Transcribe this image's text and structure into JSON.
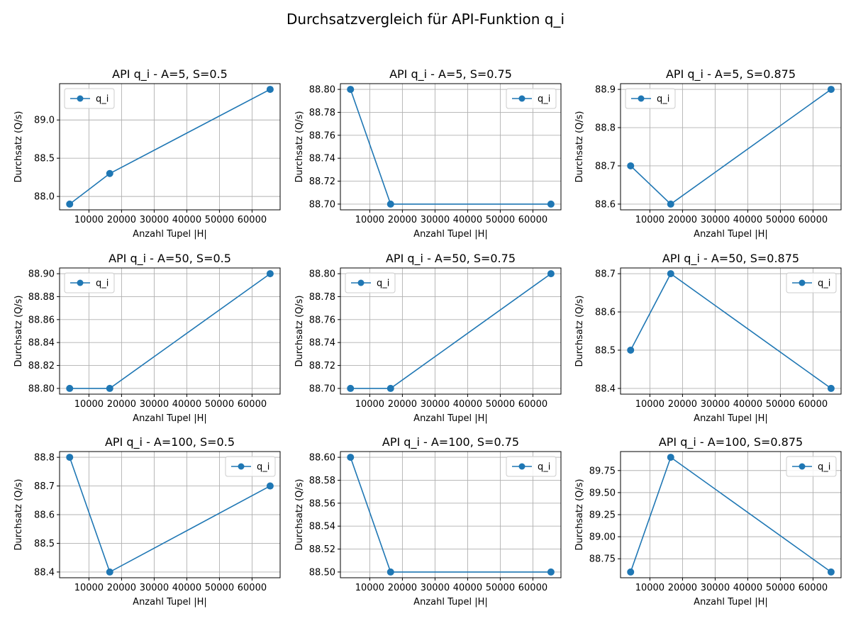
{
  "figure": {
    "title": "Durchsatzvergleich für API-Funktion q_i"
  },
  "colors": {
    "series": "#1f77b4",
    "grid": "#b0b0b0"
  },
  "chart_data": [
    {
      "type": "line",
      "title": "API q_i - A=5, S=0.5",
      "xlabel": "Anzahl Tupel |H|",
      "ylabel": "Durchsatz (Q/s)",
      "x": [
        4096,
        16384,
        65536
      ],
      "series": [
        {
          "name": "q_i",
          "values": [
            87.9,
            88.3,
            89.4
          ]
        }
      ],
      "xlim": [
        1000,
        68600
      ],
      "ylim": [
        87.825,
        89.475
      ],
      "xticks": [
        10000,
        20000,
        30000,
        40000,
        50000,
        60000
      ],
      "yticks": [
        88.0,
        88.5,
        89.0
      ],
      "ytick_decimals": 1,
      "grid": true,
      "legend": "upper left"
    },
    {
      "type": "line",
      "title": "API q_i - A=5, S=0.75",
      "xlabel": "Anzahl Tupel |H|",
      "ylabel": "Durchsatz (Q/s)",
      "x": [
        4096,
        16384,
        65536
      ],
      "series": [
        {
          "name": "q_i",
          "values": [
            88.8,
            88.7,
            88.7
          ]
        }
      ],
      "xlim": [
        1000,
        68600
      ],
      "ylim": [
        88.695,
        88.805
      ],
      "xticks": [
        10000,
        20000,
        30000,
        40000,
        50000,
        60000
      ],
      "yticks": [
        88.7,
        88.72,
        88.74,
        88.76,
        88.78,
        88.8
      ],
      "ytick_decimals": 2,
      "grid": true,
      "legend": "upper right"
    },
    {
      "type": "line",
      "title": "API q_i - A=5, S=0.875",
      "xlabel": "Anzahl Tupel |H|",
      "ylabel": "Durchsatz (Q/s)",
      "x": [
        4096,
        16384,
        65536
      ],
      "series": [
        {
          "name": "q_i",
          "values": [
            88.7,
            88.6,
            88.9
          ]
        }
      ],
      "xlim": [
        1000,
        68600
      ],
      "ylim": [
        88.585,
        88.915
      ],
      "xticks": [
        10000,
        20000,
        30000,
        40000,
        50000,
        60000
      ],
      "yticks": [
        88.6,
        88.7,
        88.8,
        88.9
      ],
      "ytick_decimals": 1,
      "grid": true,
      "legend": "upper left"
    },
    {
      "type": "line",
      "title": "API q_i - A=50, S=0.5",
      "xlabel": "Anzahl Tupel |H|",
      "ylabel": "Durchsatz (Q/s)",
      "x": [
        4096,
        16384,
        65536
      ],
      "series": [
        {
          "name": "q_i",
          "values": [
            88.8,
            88.8,
            88.9
          ]
        }
      ],
      "xlim": [
        1000,
        68600
      ],
      "ylim": [
        88.795,
        88.905
      ],
      "xticks": [
        10000,
        20000,
        30000,
        40000,
        50000,
        60000
      ],
      "yticks": [
        88.8,
        88.82,
        88.84,
        88.86,
        88.88,
        88.9
      ],
      "ytick_decimals": 2,
      "grid": true,
      "legend": "upper left"
    },
    {
      "type": "line",
      "title": "API q_i - A=50, S=0.75",
      "xlabel": "Anzahl Tupel |H|",
      "ylabel": "Durchsatz (Q/s)",
      "x": [
        4096,
        16384,
        65536
      ],
      "series": [
        {
          "name": "q_i",
          "values": [
            88.7,
            88.7,
            88.8
          ]
        }
      ],
      "xlim": [
        1000,
        68600
      ],
      "ylim": [
        88.695,
        88.805
      ],
      "xticks": [
        10000,
        20000,
        30000,
        40000,
        50000,
        60000
      ],
      "yticks": [
        88.7,
        88.72,
        88.74,
        88.76,
        88.78,
        88.8
      ],
      "ytick_decimals": 2,
      "grid": true,
      "legend": "upper left"
    },
    {
      "type": "line",
      "title": "API q_i - A=50, S=0.875",
      "xlabel": "Anzahl Tupel |H|",
      "ylabel": "Durchsatz (Q/s)",
      "x": [
        4096,
        16384,
        65536
      ],
      "series": [
        {
          "name": "q_i",
          "values": [
            88.5,
            88.7,
            88.4
          ]
        }
      ],
      "xlim": [
        1000,
        68600
      ],
      "ylim": [
        88.385,
        88.715
      ],
      "xticks": [
        10000,
        20000,
        30000,
        40000,
        50000,
        60000
      ],
      "yticks": [
        88.4,
        88.5,
        88.6,
        88.7
      ],
      "ytick_decimals": 1,
      "grid": true,
      "legend": "upper right"
    },
    {
      "type": "line",
      "title": "API q_i - A=100, S=0.5",
      "xlabel": "Anzahl Tupel |H|",
      "ylabel": "Durchsatz (Q/s)",
      "x": [
        4096,
        16384,
        65536
      ],
      "series": [
        {
          "name": "q_i",
          "values": [
            88.8,
            88.4,
            88.7
          ]
        }
      ],
      "xlim": [
        1000,
        68600
      ],
      "ylim": [
        88.38,
        88.82
      ],
      "xticks": [
        10000,
        20000,
        30000,
        40000,
        50000,
        60000
      ],
      "yticks": [
        88.4,
        88.5,
        88.6,
        88.7,
        88.8
      ],
      "ytick_decimals": 1,
      "grid": true,
      "legend": "upper right"
    },
    {
      "type": "line",
      "title": "API q_i - A=100, S=0.75",
      "xlabel": "Anzahl Tupel |H|",
      "ylabel": "Durchsatz (Q/s)",
      "x": [
        4096,
        16384,
        65536
      ],
      "series": [
        {
          "name": "q_i",
          "values": [
            88.6,
            88.5,
            88.5
          ]
        }
      ],
      "xlim": [
        1000,
        68600
      ],
      "ylim": [
        88.495,
        88.605
      ],
      "xticks": [
        10000,
        20000,
        30000,
        40000,
        50000,
        60000
      ],
      "yticks": [
        88.5,
        88.52,
        88.54,
        88.56,
        88.58,
        88.6
      ],
      "ytick_decimals": 2,
      "grid": true,
      "legend": "upper right"
    },
    {
      "type": "line",
      "title": "API q_i - A=100, S=0.875",
      "xlabel": "Anzahl Tupel |H|",
      "ylabel": "Durchsatz (Q/s)",
      "x": [
        4096,
        16384,
        65536
      ],
      "series": [
        {
          "name": "q_i",
          "values": [
            88.6,
            89.9,
            88.6
          ]
        }
      ],
      "xlim": [
        1000,
        68600
      ],
      "ylim": [
        88.535,
        89.965
      ],
      "xticks": [
        10000,
        20000,
        30000,
        40000,
        50000,
        60000
      ],
      "yticks": [
        88.75,
        89.0,
        89.25,
        89.5,
        89.75
      ],
      "ytick_decimals": 2,
      "grid": true,
      "legend": "upper right"
    }
  ]
}
